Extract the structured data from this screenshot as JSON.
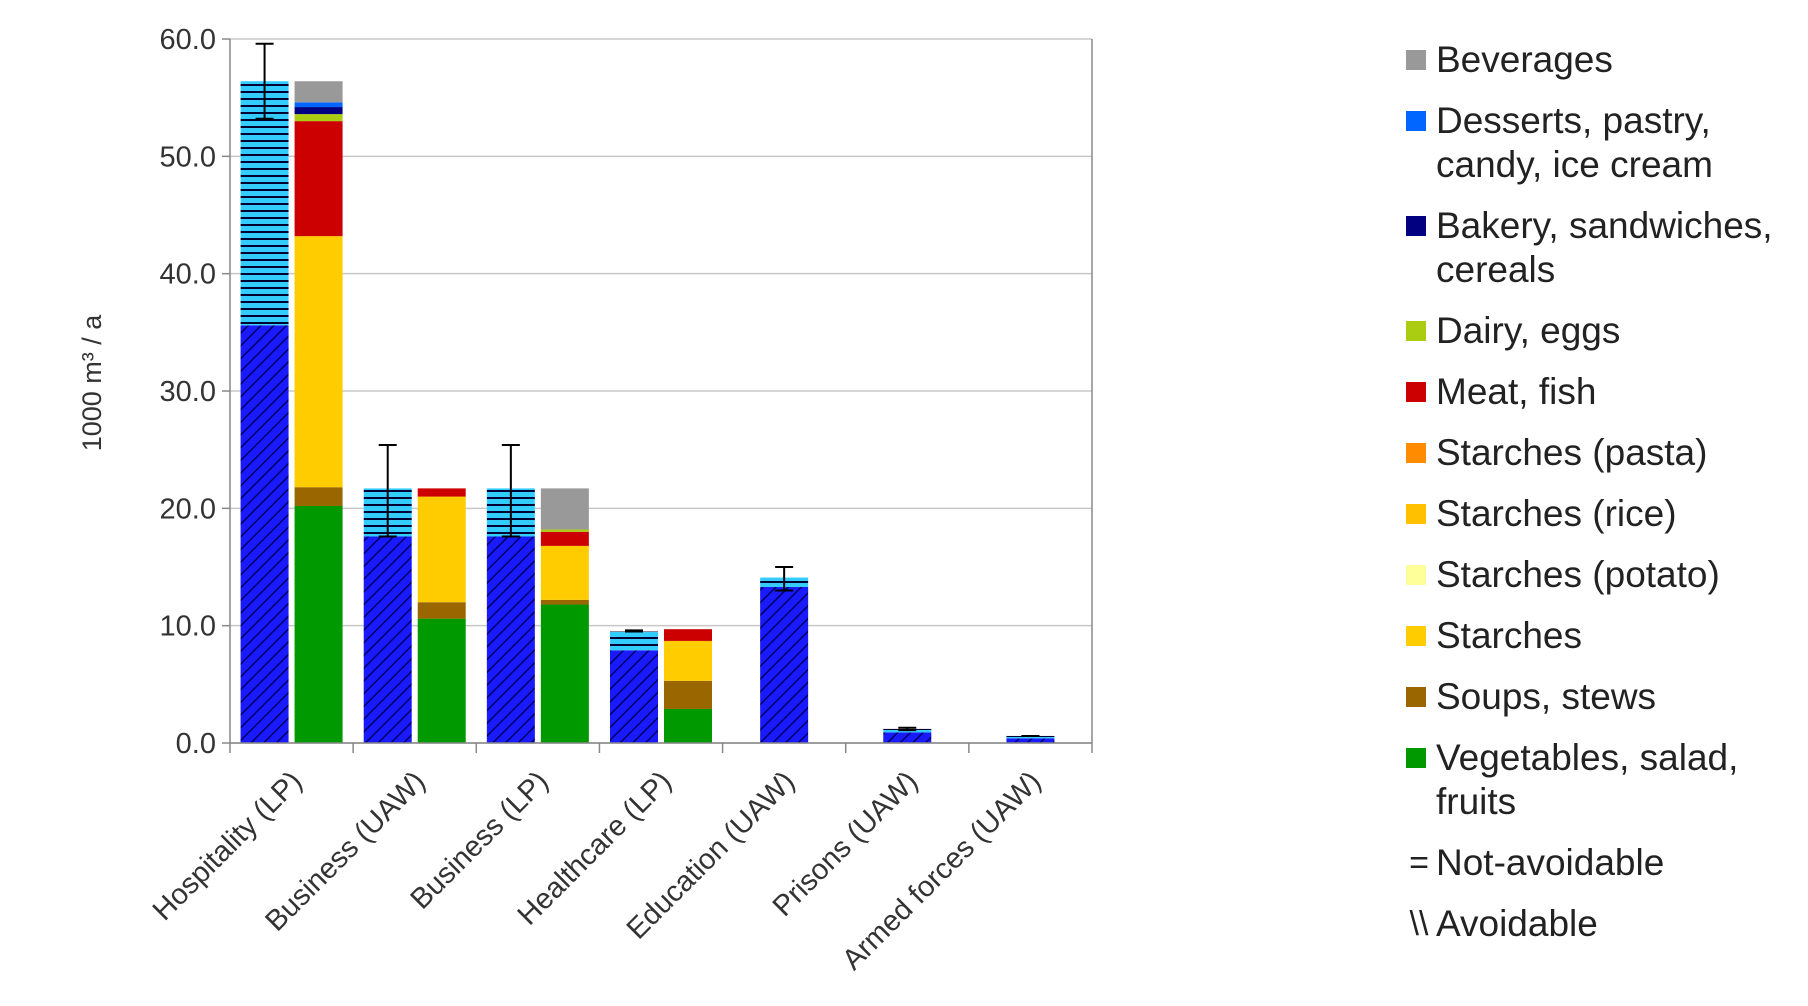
{
  "chart_data": {
    "type": "bar",
    "stacked": true,
    "ylabel": "1000 m³ / a",
    "ylim": [
      0,
      60
    ],
    "ytick_labels": [
      "0.0",
      "10.0",
      "20.0",
      "30.0",
      "40.0",
      "50.0",
      "60.0"
    ],
    "grid": true,
    "legend_position": "right",
    "categories": [
      "Hospitality (LP)",
      "Business (UAW)",
      "Business (LP)",
      "Healthcare (LP)",
      "Education (UAW)",
      "Prisons (UAW)",
      "Armed forces (UAW)"
    ],
    "avoidability_bars": [
      {
        "category": "Hospitality (LP)",
        "avoidable": 35.6,
        "not_avoidable": 20.8,
        "error_low": 53.2,
        "error_high": 59.6
      },
      {
        "category": "Business (UAW)",
        "avoidable": 17.6,
        "not_avoidable": 4.1,
        "error_low": 17.6,
        "error_high": 25.4
      },
      {
        "category": "Business (LP)",
        "avoidable": 17.6,
        "not_avoidable": 4.1,
        "error_low": 17.6,
        "error_high": 25.4
      },
      {
        "category": "Healthcare (LP)",
        "avoidable": 7.9,
        "not_avoidable": 1.6,
        "error_low": 9.5,
        "error_high": 9.6
      },
      {
        "category": "Education (UAW)",
        "avoidable": 13.3,
        "not_avoidable": 0.8,
        "error_low": 13.0,
        "error_high": 15.0
      },
      {
        "category": "Prisons (UAW)",
        "avoidable": 0.9,
        "not_avoidable": 0.3,
        "error_low": 1.1,
        "error_high": 1.3
      },
      {
        "category": "Armed forces (UAW)",
        "avoidable": 0.4,
        "not_avoidable": 0.2,
        "error_low": 0.6,
        "error_high": 0.6
      }
    ],
    "food_category_bars": [
      {
        "category": "Hospitality (LP)",
        "segments": {
          "Vegetables, salad, fruits": 20.2,
          "Soups, stews": 1.6,
          "Starches": 21.4,
          "Meat, fish": 9.8,
          "Dairy, eggs": 0.6,
          "Bakery, sandwiches, cereals": 0.6,
          "Desserts, pastry, candy, ice cream": 0.4,
          "Beverages": 1.8
        }
      },
      {
        "category": "Business (UAW)",
        "segments": {
          "Vegetables, salad, fruits": 10.6,
          "Soups, stews": 1.4,
          "Starches": 9.0,
          "Meat, fish": 0.7
        }
      },
      {
        "category": "Business (LP)",
        "segments": {
          "Vegetables, salad, fruits": 11.8,
          "Soups, stews": 0.4,
          "Starches": 4.6,
          "Meat, fish": 1.2,
          "Dairy, eggs": 0.2,
          "Beverages": 3.5
        }
      },
      {
        "category": "Healthcare (LP)",
        "segments": {
          "Vegetables, salad, fruits": 2.9,
          "Soups, stews": 2.4,
          "Starches": 3.4,
          "Meat, fish": 1.0
        }
      }
    ],
    "legend": [
      {
        "name": "Beverages",
        "color": "#999999"
      },
      {
        "name": "Desserts, pastry,\ncandy, ice cream",
        "color": "#0066ff"
      },
      {
        "name": "Bakery, sandwiches,\ncereals",
        "color": "#000080"
      },
      {
        "name": "Dairy, eggs",
        "color": "#aacc11"
      },
      {
        "name": "Meat, fish",
        "color": "#cc0000"
      },
      {
        "name": "Starches (pasta)",
        "color": "#ff8c00"
      },
      {
        "name": "Starches (rice)",
        "color": "#ffc000"
      },
      {
        "name": "Starches (potato)",
        "color": "#ffff99"
      },
      {
        "name": "Starches",
        "color": "#ffcc00"
      },
      {
        "name": "Soups, stews",
        "color": "#996600"
      },
      {
        "name": "Vegetables, salad,\nfruits",
        "color": "#009900"
      },
      {
        "name": "Not-avoidable",
        "symbol": "="
      },
      {
        "name": "Avoidable",
        "symbol": "\\\\"
      }
    ],
    "colors": {
      "avoidable_fill": "#1a1aff",
      "avoidable_hatch": "#000066",
      "not_avoidable_fill": "#33ccff",
      "not_avoidable_hatch": "#000033",
      "vegetables": "#009900",
      "soups": "#996600",
      "starches": "#ffcc00",
      "meat": "#cc0000",
      "dairy": "#aacc11",
      "bakery": "#000080",
      "desserts": "#0066ff",
      "beverages": "#999999",
      "grid": "#c8c8c8",
      "axis": "#888888"
    }
  }
}
